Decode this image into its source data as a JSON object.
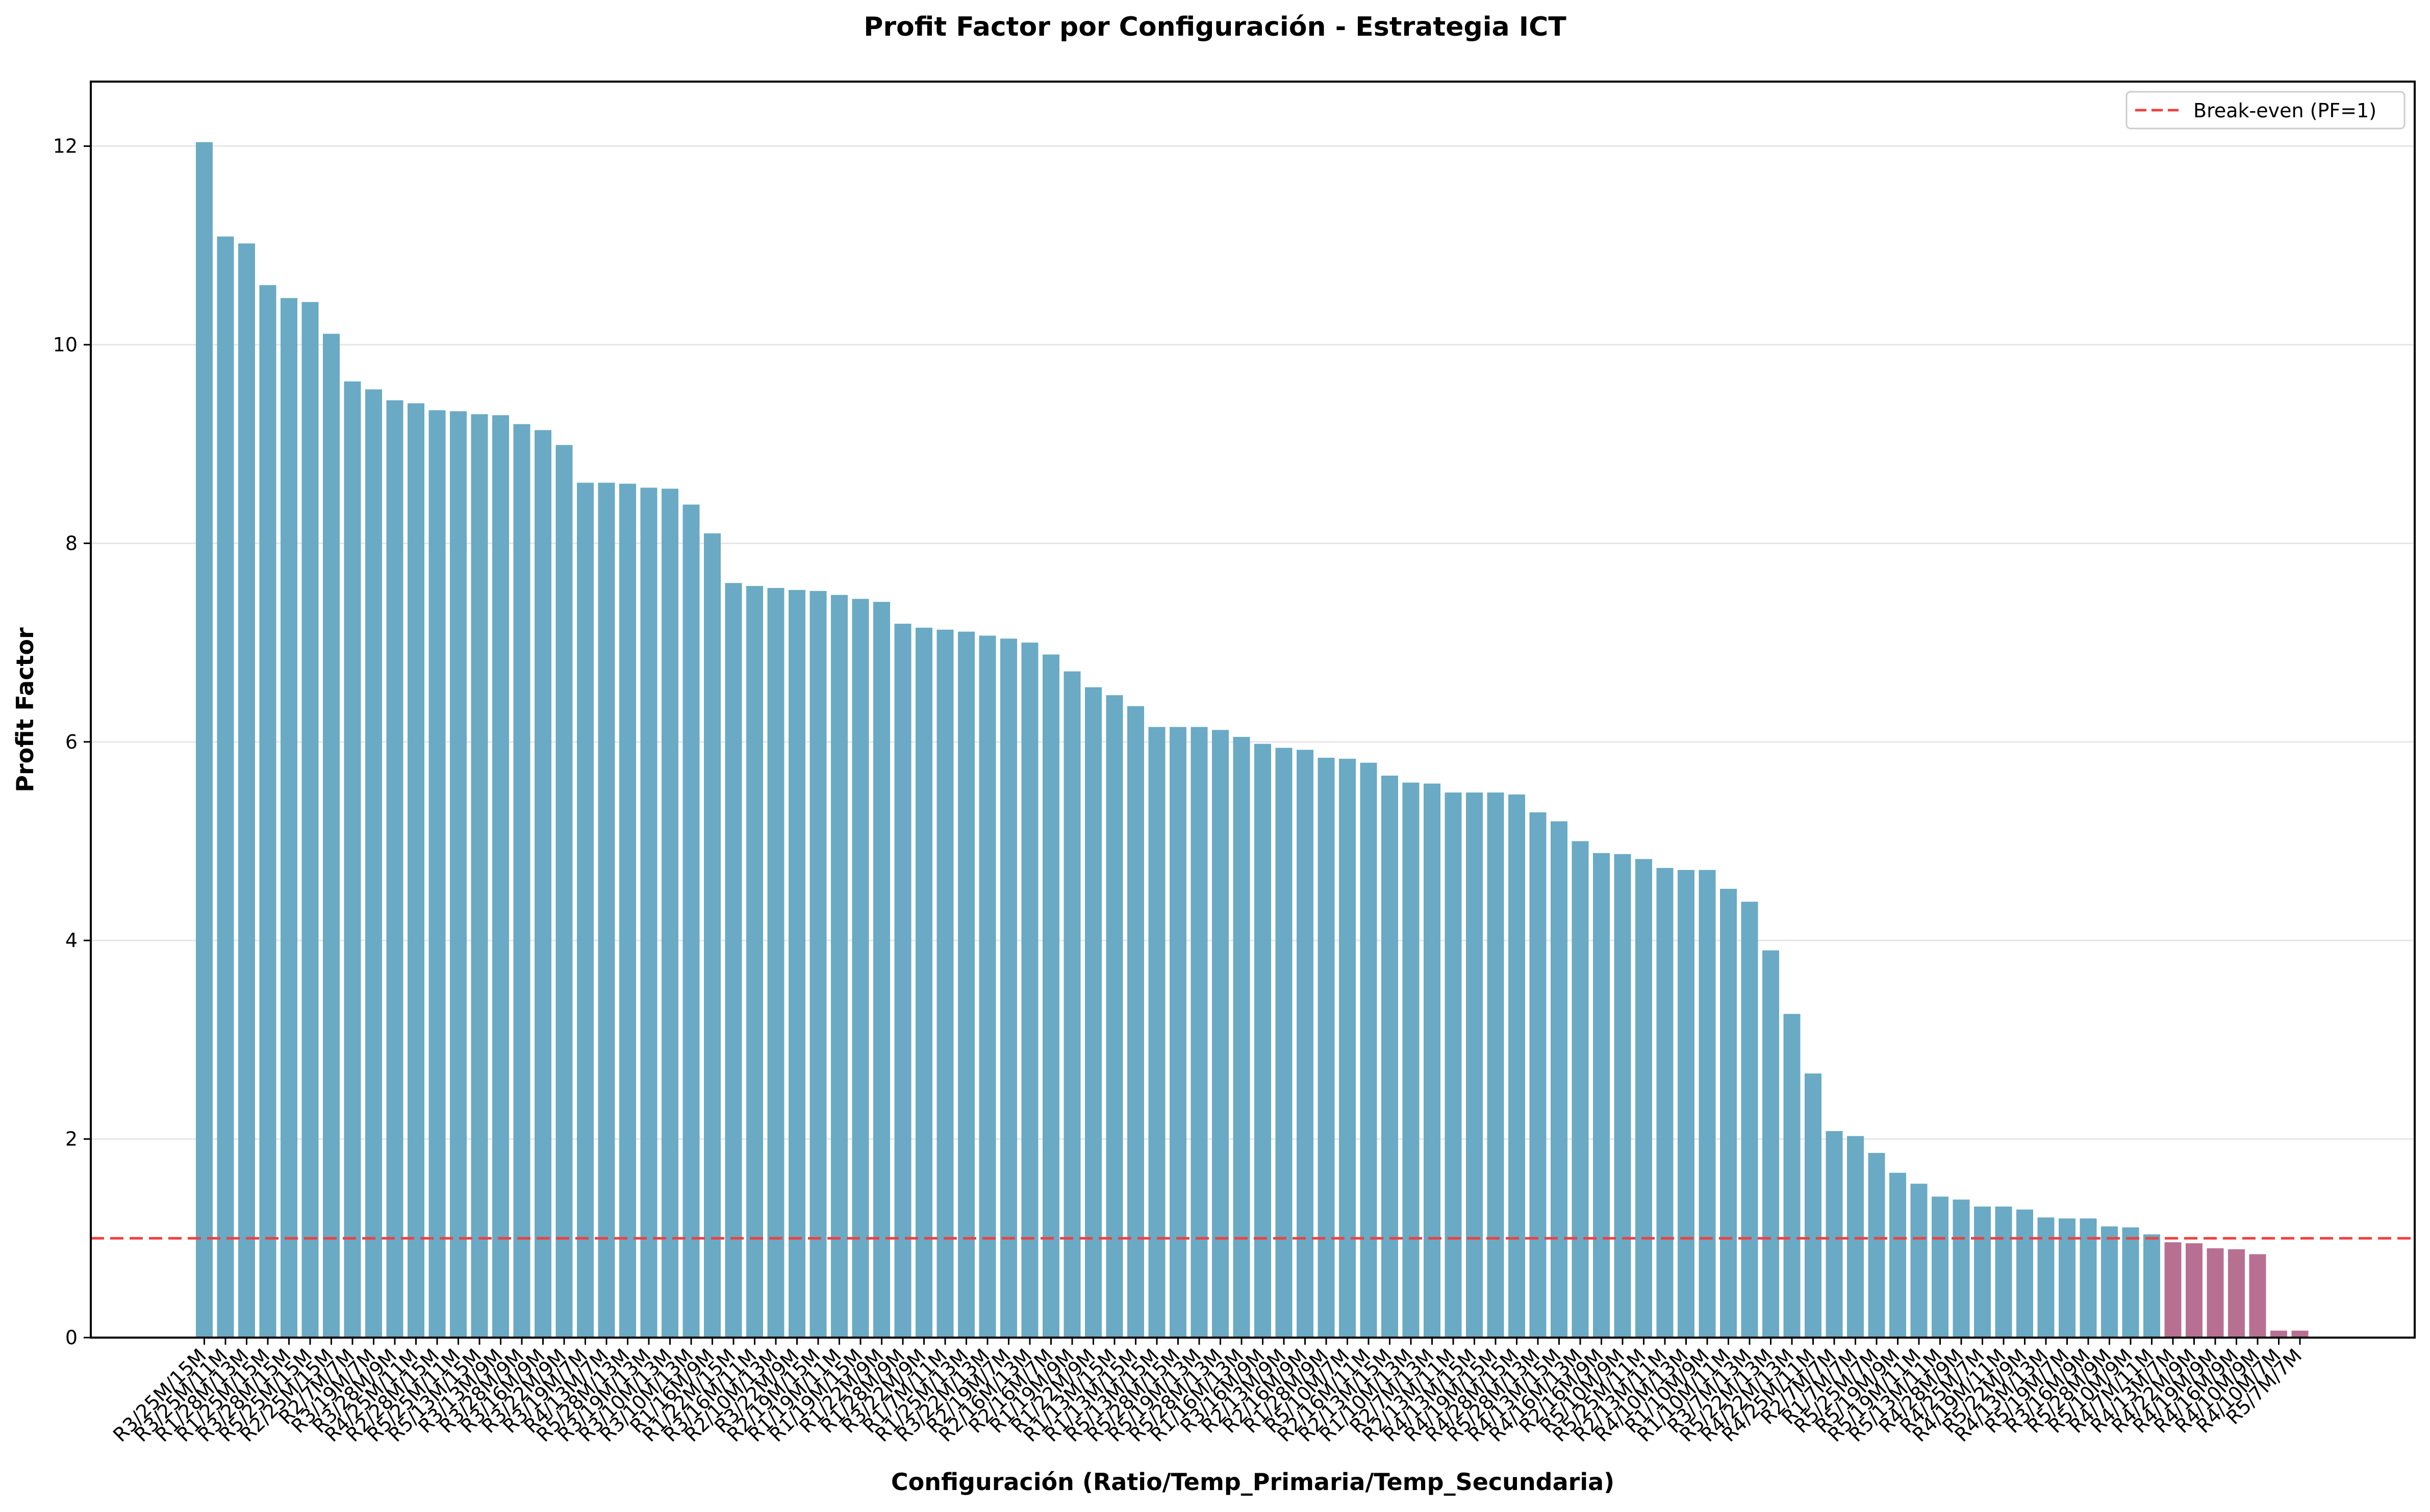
{
  "chart_data": {
    "type": "bar",
    "title": "Profit Factor por Configuración - Estrategia ICT",
    "xlabel": "Configuración (Ratio/Temp_Primaria/Temp_Secundaria)",
    "ylabel": "Profit Factor",
    "ylim": [
      0,
      12.65
    ],
    "yticks": [
      "0",
      "2",
      "4",
      "6",
      "8",
      "10",
      "12"
    ],
    "grid": "horizontal",
    "legend_position": "top-right",
    "colors": {
      "profitable": "#6aaac4",
      "unprofitable": "#b87092",
      "breakeven_line": "#f04040"
    },
    "reference_line": {
      "value": 1,
      "label": "Break-even (PF=1)"
    },
    "categories": [
      "R3/25M/15M",
      "R3/25M/11M",
      "R1/28M/13M",
      "R1/25M/15M",
      "R3/28M/15M",
      "R5/25M/15M",
      "R2/25M/15M",
      "R2/7M/7M",
      "R3/19M/7M",
      "R3/28M/9M",
      "R4/25M/11M",
      "R2/28M/15M",
      "R5/25M/11M",
      "R5/13M/15M",
      "R3/13M/9M",
      "R3/28M/9M",
      "R3/16M/9M",
      "R3/22M/9M",
      "R3/19M/7M",
      "R4/13M/7M",
      "R5/28M/13M",
      "R3/19M/13M",
      "R3/10M/13M",
      "R3/10M/13M",
      "R1/16M/9M",
      "R1/22M/15M",
      "R3/16M/11M",
      "R2/10M/13M",
      "R3/22M/9M",
      "R2/19M/15M",
      "R1/19M/11M",
      "R1/19M/15M",
      "R1/22M/9M",
      "R1/28M/9M",
      "R3/22M/9M",
      "R1/7M/11M",
      "R1/25M/13M",
      "R3/22M/13M",
      "R2/19M/7M",
      "R2/16M/13M",
      "R2/16M/7M",
      "R1/19M/9M",
      "R1/22M/9M",
      "R1/13M/15M",
      "R1/13M/15M",
      "R5/13M/15M",
      "R5/28M/15M",
      "R5/19M/13M",
      "R5/28M/13M",
      "R1/16M/13M",
      "R3/16M/9M",
      "R2/13M/9M",
      "R2/16M/9M",
      "R1/28M/9M",
      "R5/10M/7M",
      "R2/16M/11M",
      "R2/13M/15M",
      "R1/10M/13M",
      "R2/7M/13M",
      "R2/13M/11M",
      "R4/13M/15M",
      "R4/19M/15M",
      "R4/28M/15M",
      "R5/28M/13M",
      "R4/13M/15M",
      "R4/16M/13M",
      "R2/16M/9M",
      "R5/10M/9M",
      "R5/25M/11M",
      "R2/13M/11M",
      "R4/10M/13M",
      "R1/10M/9M",
      "R1/10M/11M",
      "R3/7M/13M",
      "R5/22M/13M",
      "R4/22M/13M",
      "R4/25M/11M",
      "R2/7M/7M",
      "R1/7M/7M",
      "R5/25M/7M",
      "R5/19M/9M",
      "R5/19M/11M",
      "R5/13M/11M",
      "R4/28M/9M",
      "R4/25M/7M",
      "R4/19M/11M",
      "R5/22M/9M",
      "R4/13M/13M",
      "R5/19M/7M",
      "R3/16M/9M",
      "R5/28M/9M",
      "R5/10M/9M",
      "R4/7M/11M",
      "R4/13M/7M",
      "R4/22M/9M",
      "R4/19M/9M",
      "R4/16M/9M",
      "R4/10M/9M",
      "R4/10M/7M",
      "R5/7M/7M"
    ],
    "values": [
      12.04,
      11.09,
      11.02,
      10.6,
      10.47,
      10.43,
      10.11,
      9.63,
      9.55,
      9.44,
      9.41,
      9.34,
      9.33,
      9.3,
      9.29,
      9.2,
      9.14,
      8.99,
      8.61,
      8.61,
      8.6,
      8.56,
      8.55,
      8.39,
      8.1,
      7.6,
      7.57,
      7.55,
      7.53,
      7.52,
      7.48,
      7.44,
      7.41,
      7.19,
      7.15,
      7.13,
      7.11,
      7.07,
      7.04,
      7.0,
      6.88,
      6.71,
      6.55,
      6.47,
      6.36,
      6.15,
      6.15,
      6.15,
      6.12,
      6.05,
      5.98,
      5.94,
      5.92,
      5.84,
      5.83,
      5.79,
      5.66,
      5.59,
      5.58,
      5.49,
      5.49,
      5.49,
      5.47,
      5.29,
      5.2,
      5.0,
      4.88,
      4.87,
      4.82,
      4.73,
      4.71,
      4.71,
      4.52,
      4.39,
      3.9,
      3.26,
      2.66,
      2.08,
      2.03,
      1.86,
      1.66,
      1.55,
      1.42,
      1.39,
      1.32,
      1.32,
      1.29,
      1.21,
      1.2,
      1.2,
      1.12,
      1.11,
      1.04,
      0.96,
      0.95,
      0.9,
      0.89,
      0.84,
      0.07,
      0.07
    ]
  }
}
